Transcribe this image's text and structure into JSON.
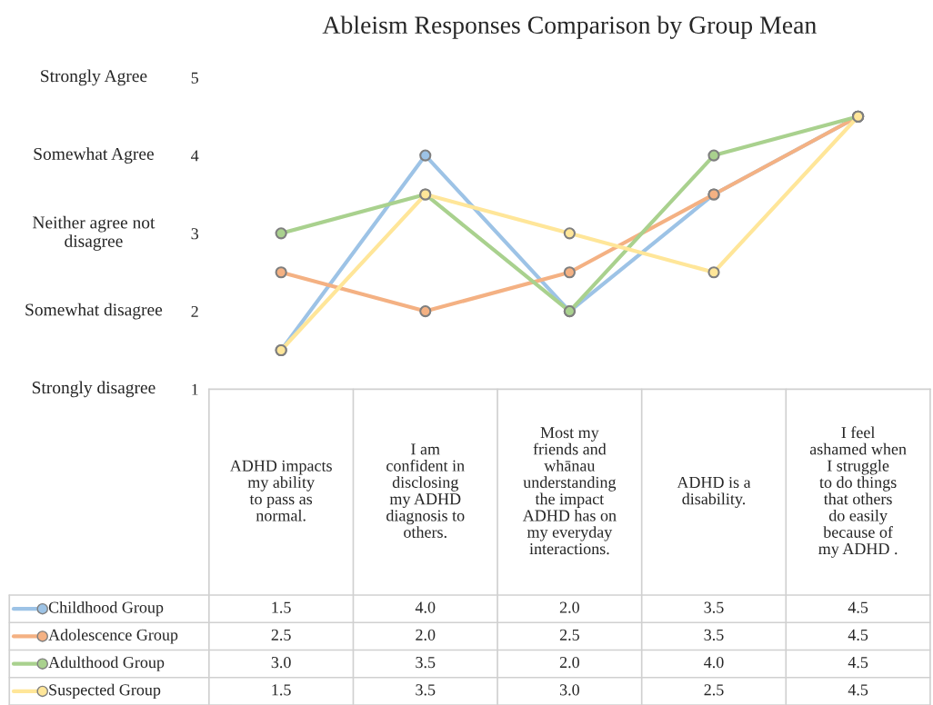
{
  "chart_data": {
    "type": "line",
    "title": "Ableism Responses Comparison by Group Mean",
    "categories": [
      "ADHD impacts my ability to pass as normal.",
      "I am confident in disclosing my ADHD diagnosis to others.",
      "Most my friends and whānau understanding the impact ADHD has on my everyday interactions.",
      "ADHD is a disability.",
      "I feel ashamed when I struggle to do things that others do easily because of my ADHD ."
    ],
    "series": [
      {
        "name": "Childhood Group",
        "color": "#9dc3e6",
        "values": [
          1.5,
          4.0,
          2.0,
          3.5,
          4.5
        ],
        "value_labels": [
          "1.5",
          "4.0",
          "2.0",
          "3.5",
          "4.5"
        ]
      },
      {
        "name": "Adolescence Group",
        "color": "#f4b183",
        "values": [
          2.5,
          2.0,
          2.5,
          3.5,
          4.5
        ],
        "value_labels": [
          "2.5",
          "2.0",
          "2.5",
          "3.5",
          "4.5"
        ]
      },
      {
        "name": "Adulthood Group",
        "color": "#a9d18e",
        "values": [
          3.0,
          3.5,
          2.0,
          4.0,
          4.5
        ],
        "value_labels": [
          "3.0",
          "3.5",
          "2.0",
          "4.0",
          "4.5"
        ]
      },
      {
        "name": "Suspected Group",
        "color": "#ffe699",
        "values": [
          1.5,
          3.5,
          3.0,
          2.5,
          4.5
        ],
        "value_labels": [
          "1.5",
          "3.5",
          "3.0",
          "2.5",
          "4.5"
        ]
      }
    ],
    "ylim": [
      1,
      5
    ],
    "yticks": [
      1,
      2,
      3,
      4,
      5
    ],
    "annotations": [
      "Strongly disagree",
      "Somewhat disagree",
      "Neither agree not disagree",
      "Somewhat Agree",
      "Strongly Agree"
    ],
    "marker": "circle",
    "line_style": "solid",
    "grid": false,
    "legend": "bottom"
  }
}
